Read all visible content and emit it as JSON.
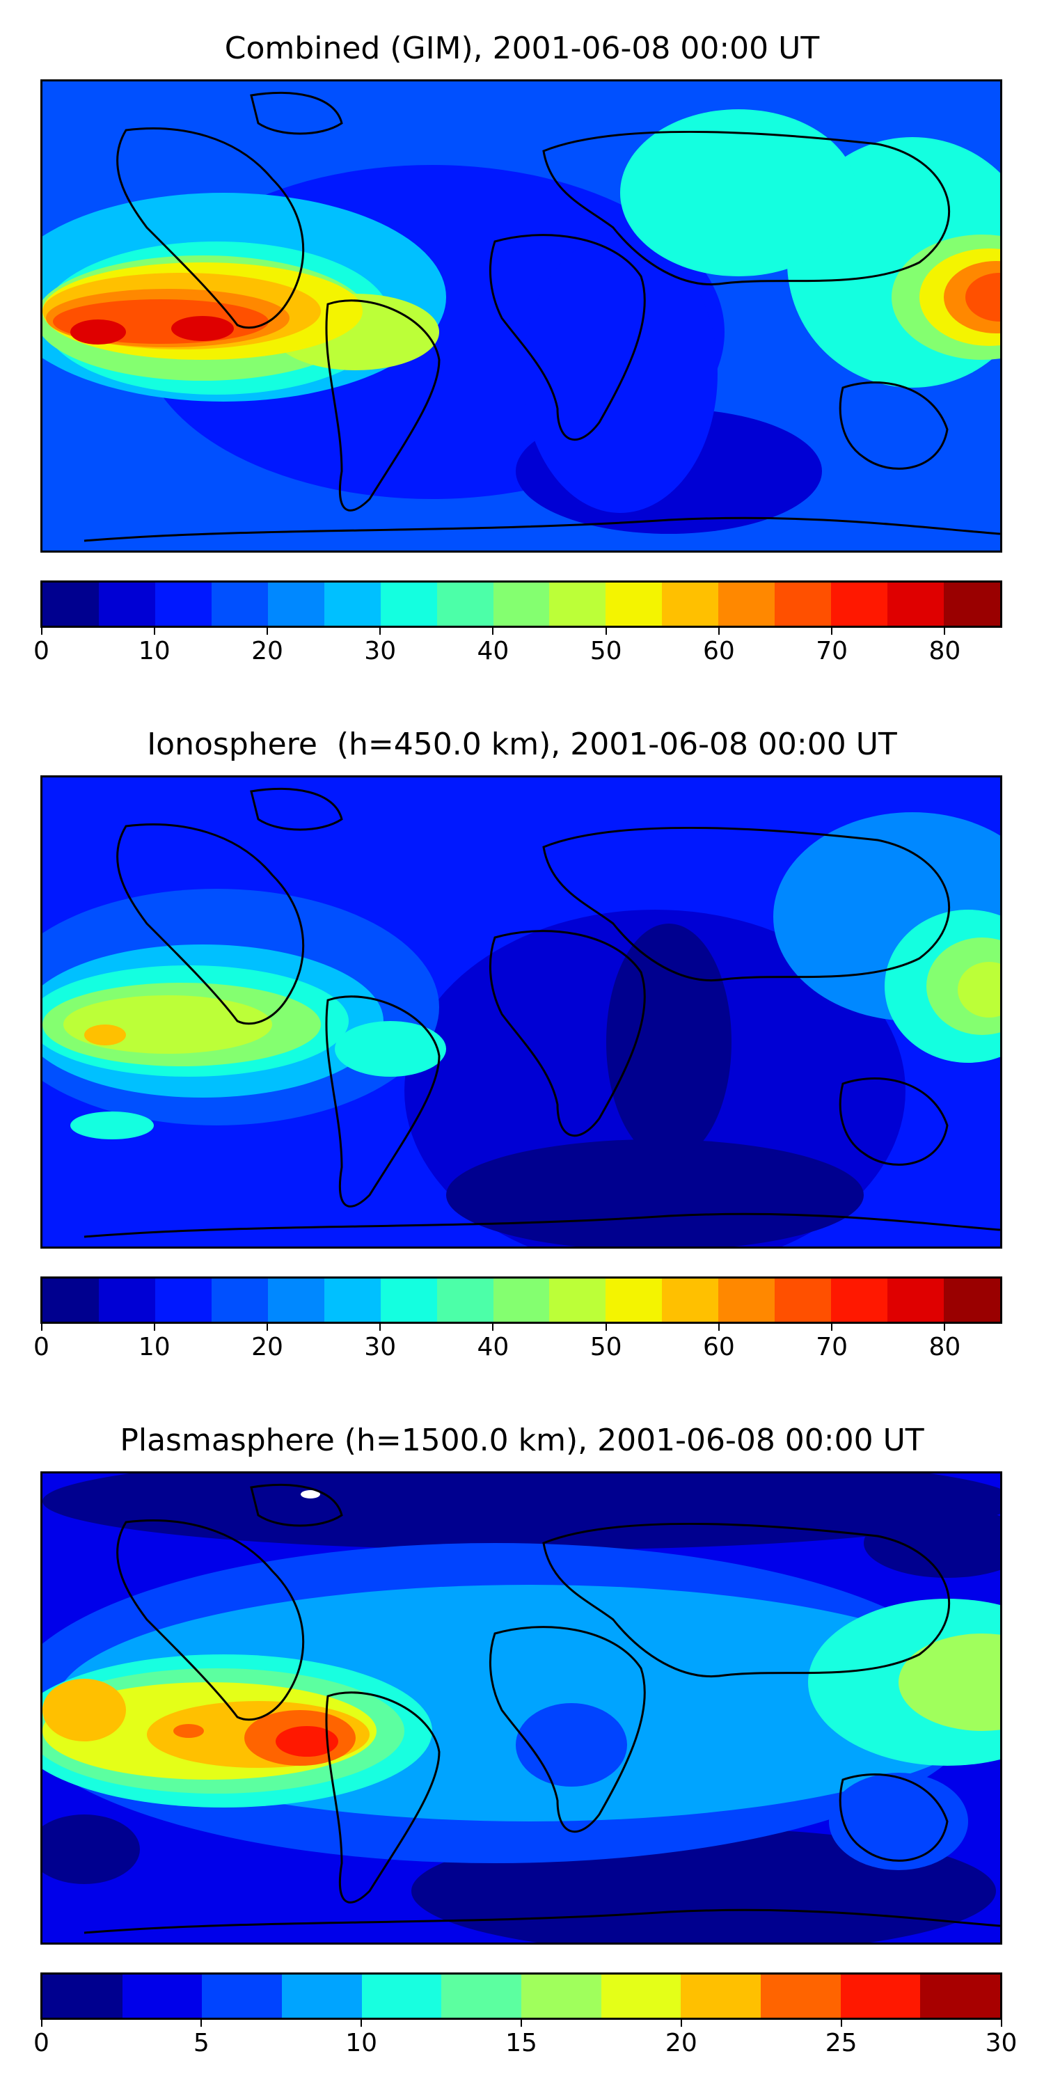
{
  "panels": [
    {
      "title": "Combined (GIM), 2001-06-08 00:00 UT",
      "colorbar": {
        "min": 0,
        "max": 85,
        "step": 5,
        "tick_values": [
          0,
          10,
          20,
          30,
          40,
          50,
          60,
          70,
          80
        ],
        "tick_labels": [
          "0",
          "10",
          "20",
          "30",
          "40",
          "50",
          "60",
          "70",
          "80"
        ],
        "colors": [
          "#00008f",
          "#0000d4",
          "#0018ff",
          "#0050ff",
          "#0088ff",
          "#00c0ff",
          "#14ffe0",
          "#4cffa8",
          "#84ff70",
          "#bcff38",
          "#f4f400",
          "#ffc000",
          "#ff8800",
          "#ff5000",
          "#ff1800",
          "#df0000",
          "#9a0000"
        ]
      }
    },
    {
      "title": "Ionosphere  (h=450.0 km), 2001-06-08 00:00 UT",
      "colorbar": {
        "min": 0,
        "max": 85,
        "step": 5,
        "tick_values": [
          0,
          10,
          20,
          30,
          40,
          50,
          60,
          70,
          80
        ],
        "tick_labels": [
          "0",
          "10",
          "20",
          "30",
          "40",
          "50",
          "60",
          "70",
          "80"
        ],
        "colors": [
          "#00008f",
          "#0000d4",
          "#0018ff",
          "#0050ff",
          "#0088ff",
          "#00c0ff",
          "#14ffe0",
          "#4cffa8",
          "#84ff70",
          "#bcff38",
          "#f4f400",
          "#ffc000",
          "#ff8800",
          "#ff5000",
          "#ff1800",
          "#df0000",
          "#9a0000"
        ]
      }
    },
    {
      "title": "Plasmasphere (h=1500.0 km), 2001-06-08 00:00 UT",
      "colorbar": {
        "min": 0,
        "max": 30,
        "step": 2.5,
        "tick_values": [
          0,
          5,
          10,
          15,
          20,
          25,
          30
        ],
        "tick_labels": [
          "0",
          "5",
          "10",
          "15",
          "20",
          "25",
          "30"
        ],
        "colors": [
          "#00008f",
          "#0000ea",
          "#0044ff",
          "#00a4ff",
          "#18ffe0",
          "#5cffa0",
          "#a0ff5c",
          "#e4ff18",
          "#ffc000",
          "#ff6400",
          "#ff1800",
          "#a80000"
        ]
      }
    }
  ]
}
